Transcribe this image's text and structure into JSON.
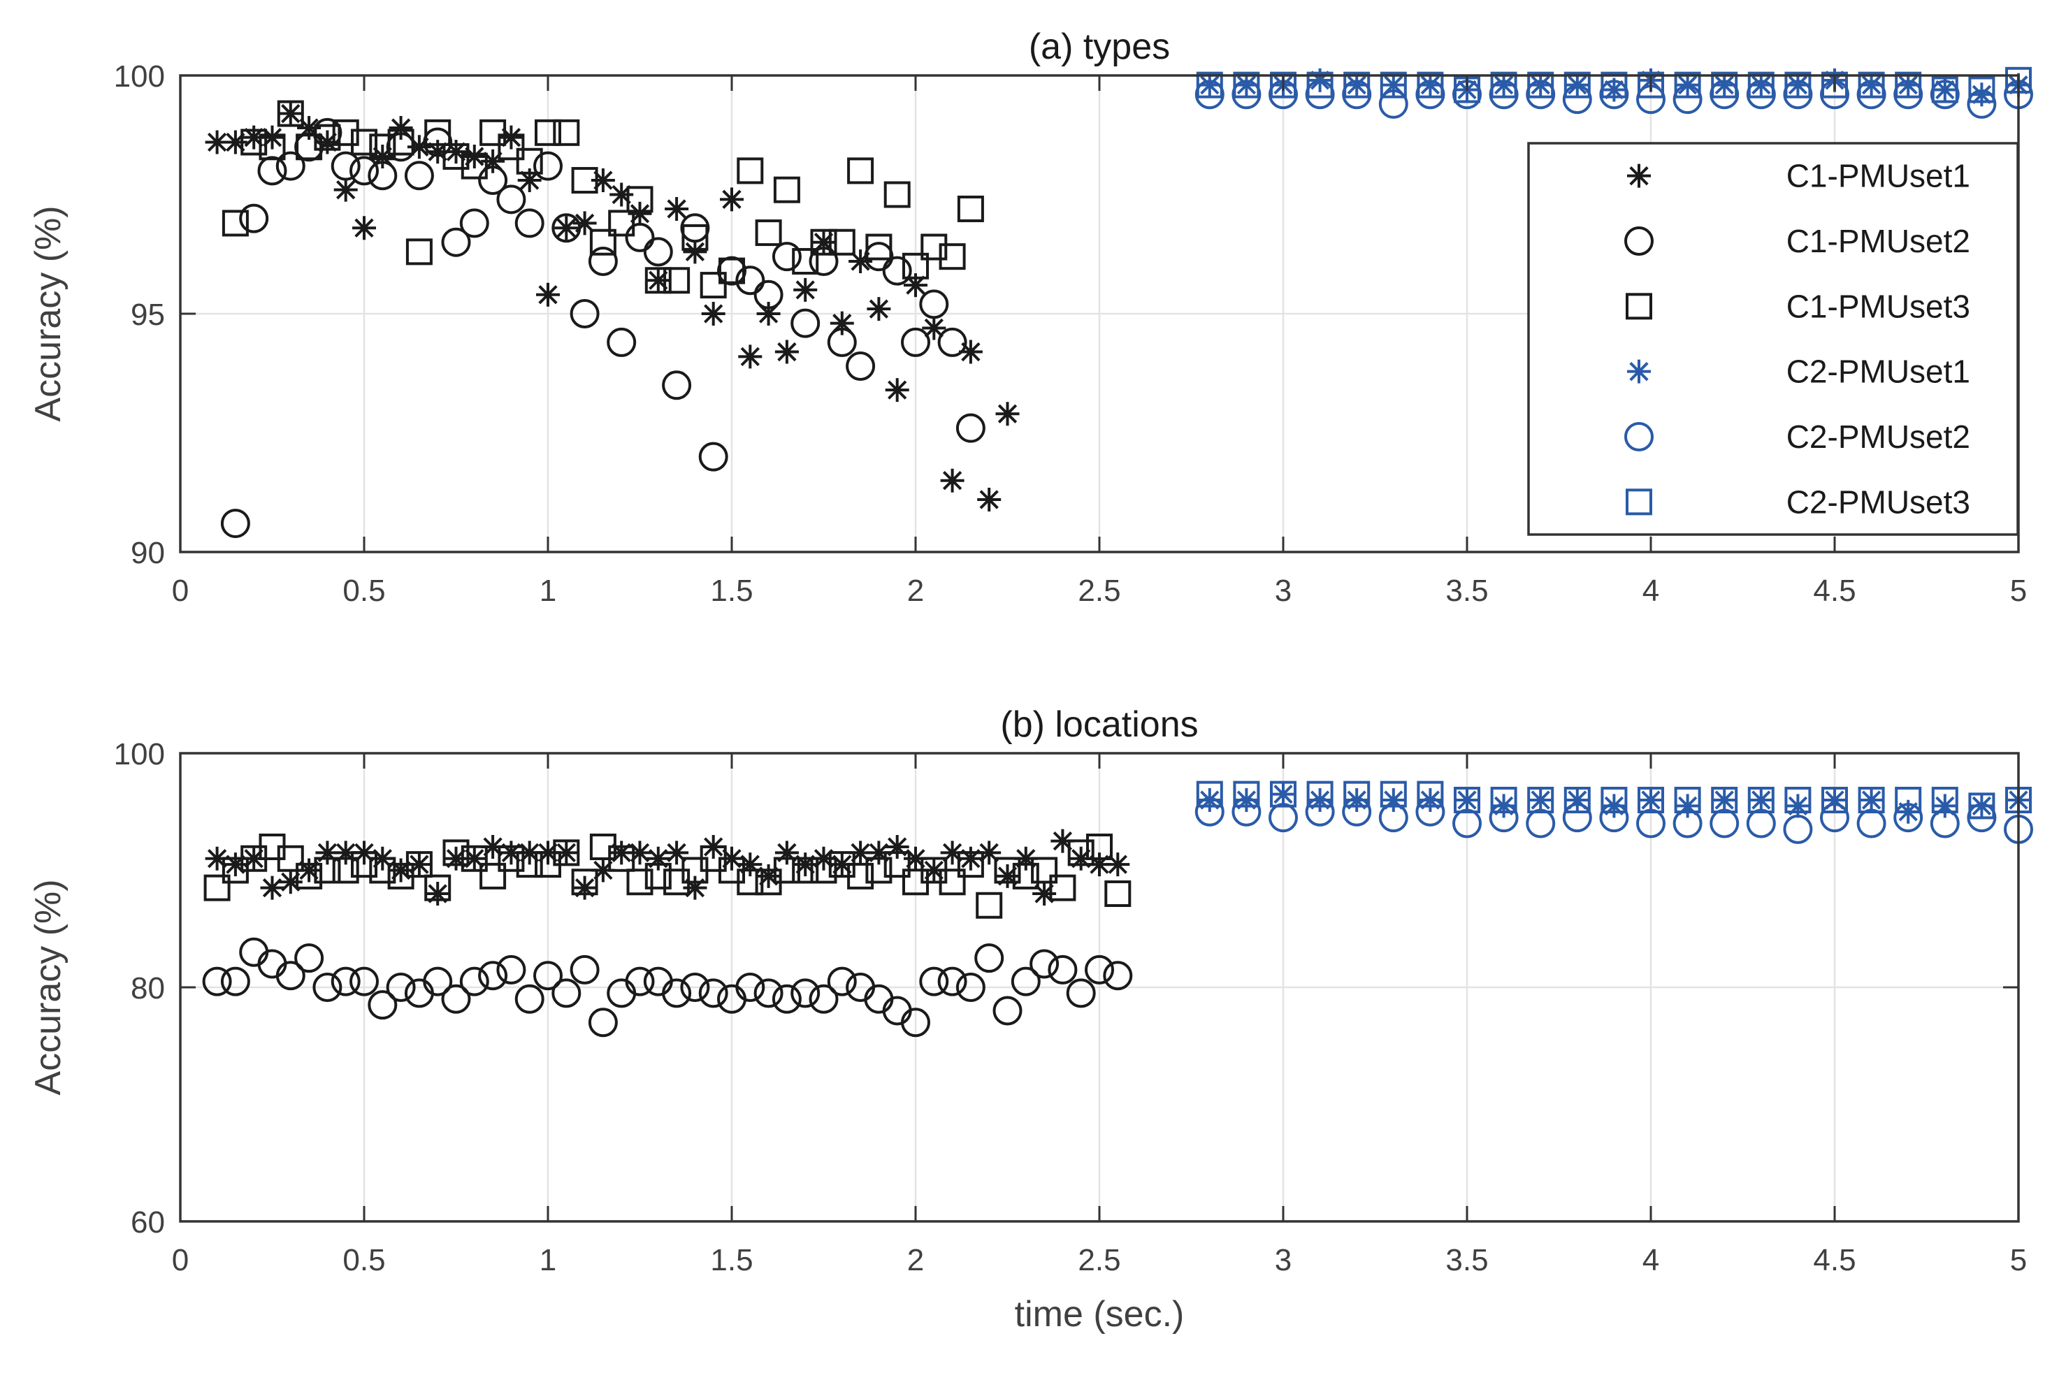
{
  "chart_data": [
    {
      "type": "scatter",
      "title": "(a) types",
      "xlabel": "",
      "ylabel": "Accuracy (%)",
      "xlim": [
        0,
        5
      ],
      "ylim": [
        90,
        100
      ],
      "xticks": [
        "0",
        "0.5",
        "1",
        "1.5",
        "2",
        "2.5",
        "3",
        "3.5",
        "4",
        "4.5",
        "5"
      ],
      "yticks": [
        "90",
        "95",
        "100"
      ],
      "grid": true,
      "legend_position": "top-right",
      "legend": [
        "C1-PMUset1",
        "C1-PMUset2",
        "C1-PMUset3",
        "C2-PMUset1",
        "C2-PMUset2",
        "C2-PMUset3"
      ],
      "series": [
        {
          "name": "C1-PMUset1",
          "marker": "star",
          "color": "#1a1a1a",
          "x": [
            0.1,
            0.15,
            0.2,
            0.25,
            0.3,
            0.35,
            0.4,
            0.45,
            0.5,
            0.55,
            0.6,
            0.65,
            0.7,
            0.75,
            0.8,
            0.85,
            0.9,
            0.95,
            1.0,
            1.05,
            1.1,
            1.15,
            1.2,
            1.25,
            1.3,
            1.35,
            1.4,
            1.45,
            1.5,
            1.55,
            1.6,
            1.65,
            1.7,
            1.75,
            1.8,
            1.85,
            1.9,
            1.95,
            2.0,
            2.05,
            2.1,
            2.15,
            2.2,
            2.25
          ],
          "y": [
            98.6,
            98.6,
            98.7,
            98.7,
            99.2,
            98.9,
            98.6,
            97.6,
            96.8,
            98.3,
            98.9,
            98.5,
            98.4,
            98.4,
            98.3,
            98.2,
            98.7,
            97.8,
            95.4,
            96.8,
            96.9,
            97.8,
            97.5,
            97.1,
            95.7,
            97.2,
            96.3,
            95.0,
            97.4,
            94.1,
            95.0,
            94.2,
            95.5,
            96.5,
            94.8,
            96.1,
            95.1,
            93.4,
            95.6,
            94.7,
            91.5,
            94.2,
            91.1,
            92.9
          ]
        },
        {
          "name": "C1-PMUset2",
          "marker": "circle",
          "color": "#1a1a1a",
          "x": [
            0.15,
            0.2,
            0.25,
            0.3,
            0.35,
            0.4,
            0.45,
            0.5,
            0.55,
            0.6,
            0.65,
            0.7,
            0.75,
            0.8,
            0.85,
            0.9,
            0.95,
            1.0,
            1.05,
            1.1,
            1.15,
            1.2,
            1.25,
            1.3,
            1.35,
            1.4,
            1.45,
            1.5,
            1.55,
            1.6,
            1.65,
            1.7,
            1.75,
            1.8,
            1.85,
            1.9,
            1.95,
            2.0,
            2.05,
            2.1,
            2.15
          ],
          "y": [
            90.6,
            97.0,
            98.0,
            98.1,
            98.5,
            98.8,
            98.1,
            98.0,
            97.9,
            98.5,
            97.9,
            98.6,
            96.5,
            96.9,
            97.8,
            97.4,
            96.9,
            98.1,
            96.8,
            95.0,
            96.1,
            94.4,
            96.6,
            96.3,
            93.5,
            96.8,
            92.0,
            95.9,
            95.7,
            95.4,
            96.2,
            94.8,
            96.1,
            94.4,
            93.9,
            96.2,
            95.9,
            94.4,
            95.2,
            94.4,
            92.6
          ]
        },
        {
          "name": "C1-PMUset3",
          "marker": "square",
          "color": "#1a1a1a",
          "x": [
            0.15,
            0.2,
            0.25,
            0.3,
            0.35,
            0.4,
            0.45,
            0.5,
            0.55,
            0.6,
            0.65,
            0.7,
            0.75,
            0.8,
            0.85,
            0.9,
            0.95,
            1.0,
            1.05,
            1.1,
            1.15,
            1.2,
            1.25,
            1.3,
            1.35,
            1.4,
            1.45,
            1.5,
            1.55,
            1.6,
            1.65,
            1.7,
            1.75,
            1.8,
            1.85,
            1.9,
            1.95,
            2.0,
            2.05,
            2.1,
            2.15
          ],
          "y": [
            96.9,
            98.6,
            98.5,
            99.2,
            98.5,
            98.7,
            98.8,
            98.6,
            98.5,
            98.6,
            96.3,
            98.8,
            98.3,
            98.1,
            98.8,
            98.5,
            98.2,
            98.8,
            98.8,
            97.8,
            96.5,
            96.9,
            97.4,
            95.7,
            95.7,
            96.6,
            95.6,
            95.9,
            98.0,
            96.7,
            97.6,
            96.1,
            96.5,
            96.5,
            98.0,
            96.4,
            97.5,
            96.0,
            96.4,
            96.2,
            97.2
          ]
        },
        {
          "name": "C2-PMUset1",
          "marker": "star",
          "color": "#2a5ba8",
          "x": [
            2.8,
            2.9,
            3.0,
            3.1,
            3.2,
            3.3,
            3.4,
            3.5,
            3.6,
            3.7,
            3.8,
            3.9,
            4.0,
            4.1,
            4.2,
            4.3,
            4.4,
            4.5,
            4.6,
            4.7,
            4.8,
            4.9,
            5.0
          ],
          "y": [
            99.8,
            99.8,
            99.8,
            99.9,
            99.8,
            99.8,
            99.8,
            99.7,
            99.8,
            99.8,
            99.8,
            99.7,
            99.9,
            99.8,
            99.8,
            99.8,
            99.8,
            99.9,
            99.8,
            99.8,
            99.7,
            99.6,
            99.8
          ]
        },
        {
          "name": "C2-PMUset2",
          "marker": "circle",
          "color": "#2a5ba8",
          "x": [
            2.8,
            2.9,
            3.0,
            3.1,
            3.2,
            3.3,
            3.4,
            3.5,
            3.6,
            3.7,
            3.8,
            3.9,
            4.0,
            4.1,
            4.2,
            4.3,
            4.4,
            4.5,
            4.6,
            4.7,
            4.8,
            4.9,
            5.0
          ],
          "y": [
            99.6,
            99.6,
            99.6,
            99.6,
            99.6,
            99.4,
            99.6,
            99.6,
            99.6,
            99.6,
            99.5,
            99.6,
            99.5,
            99.5,
            99.6,
            99.6,
            99.6,
            99.6,
            99.6,
            99.6,
            99.6,
            99.4,
            99.6
          ]
        },
        {
          "name": "C2-PMUset3",
          "marker": "square",
          "color": "#2a5ba8",
          "x": [
            2.8,
            2.9,
            3.0,
            3.1,
            3.2,
            3.3,
            3.4,
            3.5,
            3.6,
            3.7,
            3.8,
            3.9,
            4.0,
            4.1,
            4.2,
            4.3,
            4.4,
            4.5,
            4.6,
            4.7,
            4.8,
            4.9,
            5.0
          ],
          "y": [
            99.8,
            99.8,
            99.8,
            99.8,
            99.8,
            99.8,
            99.8,
            99.7,
            99.8,
            99.8,
            99.8,
            99.8,
            99.8,
            99.8,
            99.8,
            99.8,
            99.8,
            99.8,
            99.8,
            99.8,
            99.7,
            99.7,
            99.9
          ]
        }
      ]
    },
    {
      "type": "scatter",
      "title": "(b) locations",
      "xlabel": "time (sec.)",
      "ylabel": "Accuracy (%)",
      "xlim": [
        0,
        5
      ],
      "ylim": [
        60,
        100
      ],
      "xticks": [
        "0",
        "0.5",
        "1",
        "1.5",
        "2",
        "2.5",
        "3",
        "3.5",
        "4",
        "4.5",
        "5"
      ],
      "yticks": [
        "60",
        "80",
        "100"
      ],
      "grid": true,
      "series": [
        {
          "name": "C1-PMUset1",
          "marker": "star",
          "color": "#1a1a1a",
          "x": [
            0.1,
            0.15,
            0.2,
            0.25,
            0.3,
            0.35,
            0.4,
            0.45,
            0.5,
            0.55,
            0.6,
            0.65,
            0.7,
            0.75,
            0.8,
            0.85,
            0.9,
            0.95,
            1.0,
            1.05,
            1.1,
            1.15,
            1.2,
            1.25,
            1.3,
            1.35,
            1.4,
            1.45,
            1.5,
            1.55,
            1.6,
            1.65,
            1.7,
            1.75,
            1.8,
            1.85,
            1.9,
            1.95,
            2.0,
            2.05,
            2.1,
            2.15,
            2.2,
            2.25,
            2.3,
            2.35,
            2.4,
            2.45,
            2.5,
            2.55
          ],
          "y": [
            91.0,
            90.5,
            91.0,
            88.5,
            89.0,
            90.0,
            91.5,
            91.5,
            91.5,
            91.0,
            90.0,
            90.5,
            88.0,
            91.0,
            91.0,
            92.0,
            91.5,
            91.5,
            91.5,
            91.5,
            88.5,
            90.0,
            91.5,
            91.5,
            91.0,
            91.5,
            88.5,
            92.0,
            91.0,
            90.5,
            89.5,
            91.5,
            90.5,
            91.0,
            90.5,
            91.5,
            91.5,
            92.0,
            91.0,
            90.0,
            91.5,
            91.0,
            91.5,
            89.5,
            91.0,
            88.0,
            92.5,
            91.0,
            90.5,
            90.5
          ]
        },
        {
          "name": "C1-PMUset2",
          "marker": "circle",
          "color": "#1a1a1a",
          "x": [
            0.1,
            0.15,
            0.2,
            0.25,
            0.3,
            0.35,
            0.4,
            0.45,
            0.5,
            0.55,
            0.6,
            0.65,
            0.7,
            0.75,
            0.8,
            0.85,
            0.9,
            0.95,
            1.0,
            1.05,
            1.1,
            1.15,
            1.2,
            1.25,
            1.3,
            1.35,
            1.4,
            1.45,
            1.5,
            1.55,
            1.6,
            1.65,
            1.7,
            1.75,
            1.8,
            1.85,
            1.9,
            1.95,
            2.0,
            2.05,
            2.1,
            2.15,
            2.2,
            2.25,
            2.3,
            2.35,
            2.4,
            2.45,
            2.5,
            2.55
          ],
          "y": [
            80.5,
            80.5,
            83.0,
            82.0,
            81.0,
            82.5,
            80.0,
            80.5,
            80.5,
            78.5,
            80.0,
            79.5,
            80.5,
            79.0,
            80.5,
            81.0,
            81.5,
            79.0,
            81.0,
            79.5,
            81.5,
            77.0,
            79.5,
            80.5,
            80.5,
            79.5,
            80.0,
            79.5,
            79.0,
            80.0,
            79.5,
            79.0,
            79.5,
            79.0,
            80.5,
            80.0,
            79.0,
            78.0,
            77.0,
            80.5,
            80.5,
            80.0,
            82.5,
            78.0,
            80.5,
            82.0,
            81.5,
            79.5,
            81.5,
            81.0
          ]
        },
        {
          "name": "C1-PMUset3",
          "marker": "square",
          "color": "#1a1a1a",
          "x": [
            0.1,
            0.15,
            0.2,
            0.25,
            0.3,
            0.35,
            0.4,
            0.45,
            0.5,
            0.55,
            0.6,
            0.65,
            0.7,
            0.75,
            0.8,
            0.85,
            0.9,
            0.95,
            1.0,
            1.05,
            1.1,
            1.15,
            1.2,
            1.25,
            1.3,
            1.35,
            1.4,
            1.45,
            1.5,
            1.55,
            1.6,
            1.65,
            1.7,
            1.75,
            1.8,
            1.85,
            1.9,
            1.95,
            2.0,
            2.05,
            2.1,
            2.15,
            2.2,
            2.25,
            2.3,
            2.35,
            2.4,
            2.45,
            2.5,
            2.55
          ],
          "y": [
            88.5,
            90.0,
            91.0,
            92.0,
            91.0,
            89.5,
            90.0,
            90.0,
            90.5,
            90.0,
            89.5,
            90.5,
            88.5,
            91.5,
            91.0,
            89.5,
            91.0,
            90.5,
            90.5,
            91.5,
            89.0,
            92.0,
            91.0,
            89.0,
            89.5,
            89.0,
            90.0,
            91.0,
            90.0,
            89.0,
            89.0,
            90.0,
            90.0,
            90.0,
            90.5,
            89.5,
            90.0,
            90.5,
            89.0,
            90.0,
            89.0,
            90.5,
            87.0,
            90.0,
            89.5,
            90.0,
            88.5,
            91.5,
            92.0,
            88.0
          ]
        },
        {
          "name": "C2-PMUset1",
          "marker": "star",
          "color": "#2a5ba8",
          "x": [
            2.8,
            2.9,
            3.0,
            3.1,
            3.2,
            3.3,
            3.4,
            3.5,
            3.6,
            3.7,
            3.8,
            3.9,
            4.0,
            4.1,
            4.2,
            4.3,
            4.4,
            4.5,
            4.6,
            4.7,
            4.8,
            4.9,
            5.0
          ],
          "y": [
            96.0,
            96.0,
            96.5,
            96.0,
            96.0,
            96.0,
            96.0,
            96.0,
            95.5,
            96.0,
            96.0,
            95.5,
            96.0,
            95.5,
            96.0,
            96.0,
            95.5,
            96.0,
            96.0,
            95.0,
            95.5,
            95.5,
            96.0
          ]
        },
        {
          "name": "C2-PMUset2",
          "marker": "circle",
          "color": "#2a5ba8",
          "x": [
            2.8,
            2.9,
            3.0,
            3.1,
            3.2,
            3.3,
            3.4,
            3.5,
            3.6,
            3.7,
            3.8,
            3.9,
            4.0,
            4.1,
            4.2,
            4.3,
            4.4,
            4.5,
            4.6,
            4.7,
            4.8,
            4.9,
            5.0
          ],
          "y": [
            95.0,
            95.0,
            94.5,
            95.0,
            95.0,
            94.5,
            95.0,
            94.0,
            94.5,
            94.0,
            94.5,
            94.5,
            94.0,
            94.0,
            94.0,
            94.0,
            93.5,
            94.5,
            94.0,
            94.5,
            94.0,
            94.5,
            93.5
          ]
        },
        {
          "name": "C2-PMUset3",
          "marker": "square",
          "color": "#2a5ba8",
          "x": [
            2.8,
            2.9,
            3.0,
            3.1,
            3.2,
            3.3,
            3.4,
            3.5,
            3.6,
            3.7,
            3.8,
            3.9,
            4.0,
            4.1,
            4.2,
            4.3,
            4.4,
            4.5,
            4.6,
            4.7,
            4.8,
            4.9,
            5.0
          ],
          "y": [
            96.5,
            96.5,
            96.5,
            96.5,
            96.5,
            96.5,
            96.5,
            96.0,
            96.0,
            96.0,
            96.0,
            96.0,
            96.0,
            96.0,
            96.0,
            96.0,
            96.0,
            96.0,
            96.0,
            96.0,
            96.0,
            95.5,
            96.0
          ]
        }
      ]
    }
  ]
}
